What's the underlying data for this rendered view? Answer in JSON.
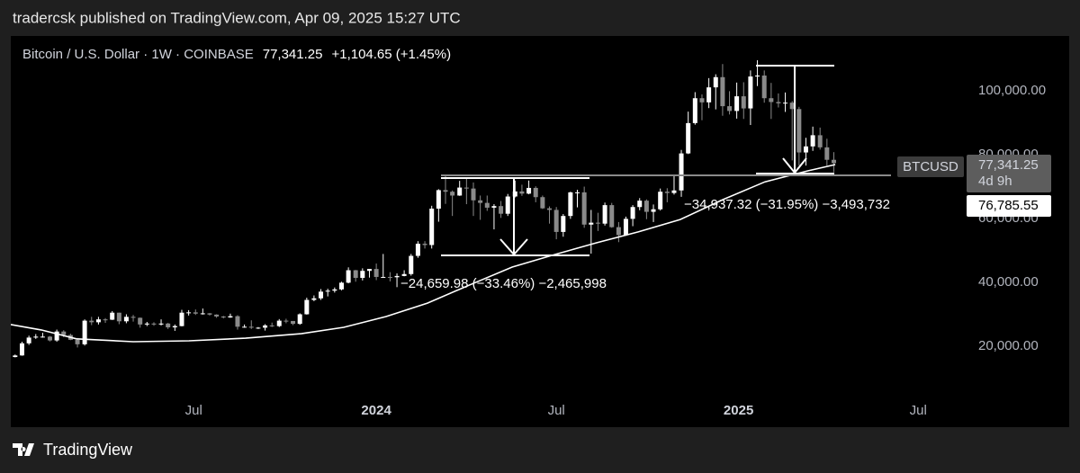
{
  "chart_data": {
    "type": "candlestick",
    "header": "tradercsk published on TradingView.com, Apr 09, 2025 15:27 UTC",
    "title": "Bitcoin / U.S. Dollar · 1W · COINBASE",
    "last_price_label": "77,341.25",
    "change_label": "+1,104.65 (+1.45%)",
    "brand": "TradingView",
    "up_color": "#ffffff",
    "down_color": "#8a8a8a",
    "x": [
      2023.003,
      2023.022,
      2023.041,
      2023.06,
      2023.079,
      2023.099,
      2023.118,
      2023.137,
      2023.156,
      2023.175,
      2023.195,
      2023.214,
      2023.233,
      2023.252,
      2023.271,
      2023.29,
      2023.31,
      2023.329,
      2023.348,
      2023.367,
      2023.386,
      2023.406,
      2023.425,
      2023.444,
      2023.463,
      2023.482,
      2023.501,
      2023.521,
      2023.54,
      2023.559,
      2023.578,
      2023.597,
      2023.617,
      2023.636,
      2023.655,
      2023.674,
      2023.693,
      2023.712,
      2023.732,
      2023.751,
      2023.77,
      2023.789,
      2023.808,
      2023.828,
      2023.847,
      2023.866,
      2023.885,
      2023.904,
      2023.923,
      2023.943,
      2023.962,
      2023.981,
      2024.0,
      2024.019,
      2024.038,
      2024.057,
      2024.077,
      2024.096,
      2024.115,
      2024.134,
      2024.153,
      2024.172,
      2024.191,
      2024.21,
      2024.23,
      2024.249,
      2024.268,
      2024.287,
      2024.306,
      2024.325,
      2024.344,
      2024.363,
      2024.383,
      2024.402,
      2024.421,
      2024.44,
      2024.459,
      2024.478,
      2024.497,
      2024.516,
      2024.536,
      2024.555,
      2024.574,
      2024.593,
      2024.612,
      2024.631,
      2024.65,
      2024.669,
      2024.689,
      2024.708,
      2024.727,
      2024.746,
      2024.765,
      2024.784,
      2024.803,
      2024.822,
      2024.842,
      2024.861,
      2024.88,
      2024.899,
      2024.918,
      2024.937,
      2024.956,
      2024.975,
      2024.995,
      2025.014,
      2025.033,
      2025.052,
      2025.071,
      2025.09,
      2025.11,
      2025.129,
      2025.148,
      2025.167,
      2025.186,
      2025.205,
      2025.225,
      2025.244,
      2025.263
    ],
    "open": [
      16600,
      17100,
      20900,
      22700,
      23000,
      23000,
      21800,
      24600,
      23500,
      22000,
      20600,
      28000,
      27500,
      28400,
      28300,
      30500,
      27800,
      29200,
      28900,
      26800,
      27100,
      26800,
      27100,
      25900,
      26300,
      30500,
      30600,
      30200,
      30300,
      29900,
      29300,
      29000,
      29400,
      26100,
      26100,
      25800,
      25800,
      26500,
      26300,
      28000,
      27900,
      27000,
      30000,
      34500,
      35000,
      37100,
      37400,
      37800,
      39900,
      43800,
      41400,
      43600,
      44200,
      41700,
      41700,
      41600,
      42000,
      42600,
      48300,
      52100,
      51700,
      63100,
      68900,
      68400,
      67200,
      69700,
      69400,
      65700,
      64900,
      63400,
      63900,
      61500,
      66900,
      68500,
      67800,
      69600,
      66700,
      63200,
      62700,
      55800,
      60800,
      68200,
      68200,
      58100,
      58700,
      58400,
      64200,
      57300,
      54800,
      59900,
      63600,
      65600,
      62100,
      62900,
      68400,
      68000,
      68800,
      80400,
      89900,
      97700,
      96400,
      101100,
      104300,
      95200,
      93700,
      98300,
      94500,
      104500,
      104800,
      97700,
      96500,
      96100,
      96300,
      94300,
      80700,
      82600,
      86100,
      82300,
      78400
    ],
    "high": [
      17400,
      21400,
      23300,
      23800,
      24200,
      23200,
      25200,
      25000,
      23900,
      22600,
      28400,
      29200,
      29200,
      28800,
      31000,
      30500,
      30000,
      29800,
      29000,
      27600,
      27500,
      28400,
      27300,
      26800,
      31400,
      31300,
      31500,
      31800,
      30400,
      30000,
      29500,
      30200,
      29700,
      26800,
      28100,
      26000,
      26900,
      27400,
      28500,
      28600,
      27900,
      30300,
      35200,
      35900,
      37900,
      38000,
      38400,
      40200,
      44700,
      43900,
      44400,
      44200,
      45900,
      48900,
      43200,
      42800,
      43800,
      48900,
      52900,
      52900,
      64000,
      69200,
      73800,
      68800,
      71800,
      72800,
      71300,
      67200,
      67200,
      64500,
      65500,
      67700,
      71900,
      70600,
      71900,
      70100,
      67200,
      63800,
      63600,
      61400,
      68400,
      69000,
      70000,
      62700,
      61800,
      65000,
      64900,
      58900,
      60600,
      64200,
      66400,
      66000,
      64400,
      69400,
      69500,
      73600,
      81500,
      93500,
      99600,
      98900,
      104000,
      105200,
      108400,
      99900,
      102600,
      102700,
      106400,
      109600,
      106400,
      102500,
      99200,
      99500,
      96800,
      95000,
      85300,
      88800,
      88500,
      85000,
      80800
    ],
    "low": [
      16500,
      17000,
      20400,
      22300,
      22700,
      21500,
      21400,
      22800,
      21900,
      19600,
      20200,
      26600,
      26800,
      27300,
      28200,
      26900,
      27200,
      27700,
      25800,
      26300,
      26400,
      26500,
      25400,
      24800,
      26200,
      29600,
      29800,
      29900,
      29600,
      28900,
      28700,
      28900,
      25200,
      25800,
      25400,
      25400,
      24900,
      26000,
      26000,
      27200,
      26600,
      26700,
      29900,
      34100,
      34500,
      35600,
      36800,
      37500,
      39700,
      40200,
      40600,
      41500,
      40700,
      41500,
      40300,
      38500,
      41900,
      42100,
      47700,
      50600,
      50600,
      59000,
      64600,
      60800,
      67100,
      64500,
      60800,
      59600,
      62400,
      56600,
      60200,
      60800,
      66600,
      67100,
      67600,
      65100,
      63000,
      58400,
      53500,
      54300,
      59900,
      63500,
      57100,
      49000,
      56100,
      57800,
      57100,
      52600,
      54600,
      57600,
      62600,
      59800,
      58900,
      62500,
      65100,
      67500,
      66800,
      80200,
      89400,
      90800,
      94600,
      94200,
      92200,
      92600,
      91300,
      91200,
      89300,
      101500,
      96300,
      91200,
      94800,
      93400,
      78200,
      76600,
      76600,
      81200,
      81600,
      76600,
      74500
    ],
    "close": [
      17100,
      20900,
      22700,
      23000,
      23000,
      21800,
      24600,
      23500,
      22000,
      20600,
      28000,
      27500,
      28400,
      28300,
      30500,
      27800,
      29200,
      28900,
      26800,
      27100,
      26800,
      27100,
      25900,
      26300,
      30500,
      30600,
      30200,
      30300,
      29900,
      29300,
      29000,
      29400,
      26100,
      26100,
      25800,
      25800,
      26500,
      26300,
      28000,
      27900,
      27000,
      30000,
      34500,
      35000,
      37100,
      37400,
      37800,
      39900,
      43800,
      41400,
      43600,
      44200,
      41700,
      41700,
      41600,
      42000,
      42600,
      48300,
      52100,
      51700,
      63100,
      68900,
      68400,
      67200,
      69700,
      69400,
      65700,
      64900,
      63400,
      63900,
      61500,
      66900,
      68500,
      67800,
      69600,
      66700,
      63200,
      62700,
      55800,
      60800,
      68200,
      68200,
      58100,
      58700,
      58400,
      64200,
      57300,
      54800,
      59900,
      63600,
      65600,
      62100,
      62900,
      68400,
      68000,
      68800,
      80400,
      89900,
      97700,
      96400,
      101100,
      104300,
      95200,
      93700,
      98300,
      94500,
      104500,
      104800,
      97700,
      96500,
      96100,
      96300,
      94300,
      80700,
      82600,
      86100,
      82300,
      78400,
      77341.25
    ],
    "ma": {
      "color": "#ffffff",
      "x": [
        2022.991,
        2023.075,
        2023.172,
        2023.329,
        2023.483,
        2023.639,
        2023.793,
        2023.91,
        2024.027,
        2024.141,
        2024.258,
        2024.375,
        2024.492,
        2024.608,
        2024.723,
        2024.839,
        2024.956,
        2025.073,
        2025.19,
        2025.267
      ],
      "values": [
        26800,
        25100,
        22300,
        21400,
        21700,
        22500,
        23900,
        25900,
        29300,
        33500,
        39200,
        44800,
        48700,
        52400,
        55800,
        59700,
        65900,
        71500,
        74900,
        76900
      ]
    },
    "xlim": [
      2022.991,
      2025.632
    ],
    "ylim": [
      4500,
      117200
    ],
    "xticks": [
      {
        "value": 2023.496,
        "label": "Jul"
      },
      {
        "value": 2024.0,
        "label": "2024"
      },
      {
        "value": 2024.497,
        "label": "Jul"
      },
      {
        "value": 2025.0,
        "label": "2025"
      },
      {
        "value": 2025.496,
        "label": "Jul"
      }
    ],
    "yticks": [
      {
        "value": 20000,
        "label": "20,000.00"
      },
      {
        "value": 40000,
        "label": "40,000.00"
      },
      {
        "value": 60000,
        "label": "60,000.00"
      },
      {
        "value": 80000,
        "label": "80,000.00"
      },
      {
        "value": 100000,
        "label": "100,000.00"
      }
    ],
    "annotations": [
      "−24,659.98 (−33.46%) −2,465,998",
      "−34,937.32 (−31.95%) −3,493,732"
    ],
    "symbol_label": "BTCUSD",
    "price_box": {
      "price": "77,341.25",
      "countdown": "4d 9h"
    },
    "ma_label": "76,785.55"
  }
}
